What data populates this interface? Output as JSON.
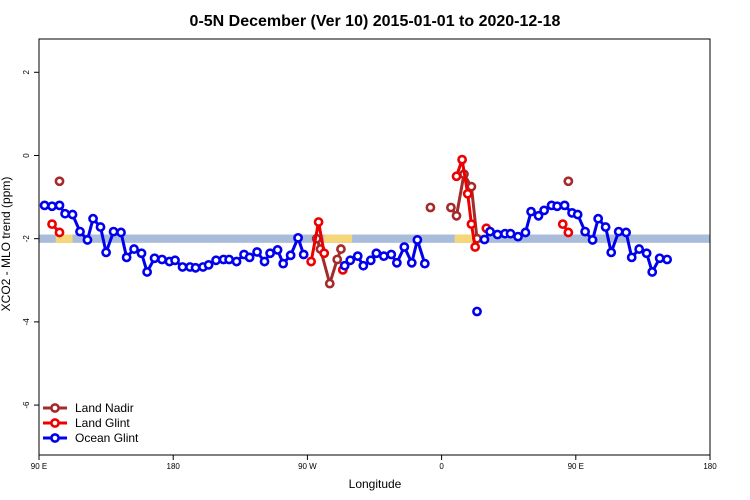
{
  "chart_data": {
    "type": "line",
    "title": "0-5N December (Ver 10)   2015-01-01 to 2020-12-18",
    "xlabel": "Longitude",
    "ylabel": "XCO2 - MLO trend (ppm)",
    "xlim": [
      90,
      450
    ],
    "ylim": [
      -7.2,
      2.8
    ],
    "x_ticks": [
      {
        "value": 90,
        "label": "90 E"
      },
      {
        "value": 162,
        "label": "180"
      },
      {
        "value": 234,
        "label": "90 W"
      },
      {
        "value": 306,
        "label": "0"
      },
      {
        "value": 378,
        "label": "90 E"
      },
      {
        "value": 450,
        "label": "180"
      }
    ],
    "y_ticks": [
      {
        "value": 2,
        "label": "2"
      },
      {
        "value": 0,
        "label": "0"
      },
      {
        "value": -2,
        "label": "-2"
      },
      {
        "value": -4,
        "label": "-4"
      },
      {
        "value": -6,
        "label": "-6"
      }
    ],
    "band": {
      "y_range": [
        -2.1,
        -1.9
      ],
      "color": "#a9bcd9",
      "highlight_color": "#f5d77a",
      "highlights": [
        [
          99,
          108
        ],
        [
          243,
          258
        ],
        [
          313,
          330
        ]
      ]
    },
    "series": [
      {
        "name": "Land Nadir",
        "color": "#a52a2a",
        "segments": [
          [
            {
              "x": 101,
              "y": -0.62
            }
          ],
          [
            {
              "x": 239,
              "y": -2.0
            },
            {
              "x": 241,
              "y": -2.25
            },
            {
              "x": 246,
              "y": -3.08
            },
            {
              "x": 250,
              "y": -2.5
            },
            {
              "x": 252,
              "y": -2.25
            }
          ],
          [
            {
              "x": 300,
              "y": -1.25
            }
          ],
          [
            {
              "x": 311,
              "y": -1.25
            },
            {
              "x": 314,
              "y": -1.45
            },
            {
              "x": 318,
              "y": -0.45
            },
            {
              "x": 322,
              "y": -0.75
            },
            {
              "x": 325,
              "y": -2.0
            }
          ],
          [
            {
              "x": 374,
              "y": -0.62
            }
          ]
        ]
      },
      {
        "name": "Land Glint",
        "color": "#ee0000",
        "segments": [
          [
            {
              "x": 97,
              "y": -1.65
            },
            {
              "x": 101,
              "y": -1.85
            }
          ],
          [
            {
              "x": 236,
              "y": -2.55
            },
            {
              "x": 240,
              "y": -1.6
            },
            {
              "x": 243,
              "y": -2.35
            }
          ],
          [
            {
              "x": 253,
              "y": -2.75
            }
          ],
          [
            {
              "x": 314,
              "y": -0.5
            },
            {
              "x": 317,
              "y": -0.1
            },
            {
              "x": 320,
              "y": -0.92
            },
            {
              "x": 322,
              "y": -1.65
            },
            {
              "x": 324,
              "y": -2.2
            }
          ],
          [
            {
              "x": 330,
              "y": -1.75
            }
          ],
          [
            {
              "x": 371,
              "y": -1.65
            },
            {
              "x": 374,
              "y": -1.85
            }
          ]
        ]
      },
      {
        "name": "Ocean Glint",
        "color": "#0000ee",
        "segments": [
          [
            {
              "x": 93,
              "y": -1.2
            },
            {
              "x": 97,
              "y": -1.22
            },
            {
              "x": 101,
              "y": -1.2
            },
            {
              "x": 104,
              "y": -1.4
            },
            {
              "x": 108,
              "y": -1.42
            },
            {
              "x": 112,
              "y": -1.83
            },
            {
              "x": 116,
              "y": -2.03
            },
            {
              "x": 119,
              "y": -1.52
            },
            {
              "x": 123,
              "y": -1.72
            },
            {
              "x": 126,
              "y": -2.33
            },
            {
              "x": 130,
              "y": -1.83
            },
            {
              "x": 134,
              "y": -1.85
            },
            {
              "x": 137,
              "y": -2.45
            },
            {
              "x": 141,
              "y": -2.25
            },
            {
              "x": 145,
              "y": -2.35
            },
            {
              "x": 148,
              "y": -2.8
            },
            {
              "x": 152,
              "y": -2.47
            },
            {
              "x": 156,
              "y": -2.5
            },
            {
              "x": 160,
              "y": -2.55
            },
            {
              "x": 163,
              "y": -2.52
            },
            {
              "x": 167,
              "y": -2.68
            },
            {
              "x": 171,
              "y": -2.68
            },
            {
              "x": 174,
              "y": -2.7
            },
            {
              "x": 178,
              "y": -2.68
            },
            {
              "x": 181,
              "y": -2.63
            },
            {
              "x": 185,
              "y": -2.52
            },
            {
              "x": 189,
              "y": -2.5
            },
            {
              "x": 192,
              "y": -2.5
            },
            {
              "x": 196,
              "y": -2.55
            },
            {
              "x": 200,
              "y": -2.38
            },
            {
              "x": 203,
              "y": -2.45
            },
            {
              "x": 207,
              "y": -2.32
            },
            {
              "x": 211,
              "y": -2.55
            },
            {
              "x": 214,
              "y": -2.35
            },
            {
              "x": 218,
              "y": -2.27
            },
            {
              "x": 221,
              "y": -2.6
            },
            {
              "x": 225,
              "y": -2.4
            },
            {
              "x": 229,
              "y": -1.98
            },
            {
              "x": 232,
              "y": -2.38
            }
          ],
          [
            {
              "x": 254,
              "y": -2.65
            },
            {
              "x": 257,
              "y": -2.52
            },
            {
              "x": 261,
              "y": -2.42
            },
            {
              "x": 264,
              "y": -2.65
            },
            {
              "x": 268,
              "y": -2.52
            },
            {
              "x": 271,
              "y": -2.35
            },
            {
              "x": 275,
              "y": -2.42
            },
            {
              "x": 279,
              "y": -2.38
            },
            {
              "x": 282,
              "y": -2.58
            },
            {
              "x": 286,
              "y": -2.2
            },
            {
              "x": 290,
              "y": -2.58
            },
            {
              "x": 293,
              "y": -2.03
            },
            {
              "x": 297,
              "y": -2.6
            }
          ],
          [
            {
              "x": 325,
              "y": -3.75
            }
          ],
          [
            {
              "x": 329,
              "y": -2.02
            },
            {
              "x": 332,
              "y": -1.83
            },
            {
              "x": 336,
              "y": -1.9
            },
            {
              "x": 340,
              "y": -1.88
            },
            {
              "x": 343,
              "y": -1.88
            },
            {
              "x": 347,
              "y": -1.95
            },
            {
              "x": 351,
              "y": -1.85
            },
            {
              "x": 354,
              "y": -1.35
            },
            {
              "x": 358,
              "y": -1.45
            },
            {
              "x": 361,
              "y": -1.32
            },
            {
              "x": 365,
              "y": -1.2
            },
            {
              "x": 368,
              "y": -1.22
            },
            {
              "x": 372,
              "y": -1.2
            },
            {
              "x": 376,
              "y": -1.38
            },
            {
              "x": 379,
              "y": -1.42
            },
            {
              "x": 383,
              "y": -1.83
            },
            {
              "x": 387,
              "y": -2.03
            },
            {
              "x": 390,
              "y": -1.52
            },
            {
              "x": 394,
              "y": -1.72
            },
            {
              "x": 397,
              "y": -2.33
            },
            {
              "x": 401,
              "y": -1.83
            },
            {
              "x": 405,
              "y": -1.85
            },
            {
              "x": 408,
              "y": -2.45
            },
            {
              "x": 412,
              "y": -2.25
            },
            {
              "x": 416,
              "y": -2.35
            },
            {
              "x": 419,
              "y": -2.8
            },
            {
              "x": 423,
              "y": -2.47
            },
            {
              "x": 427,
              "y": -2.5
            }
          ]
        ]
      }
    ]
  }
}
